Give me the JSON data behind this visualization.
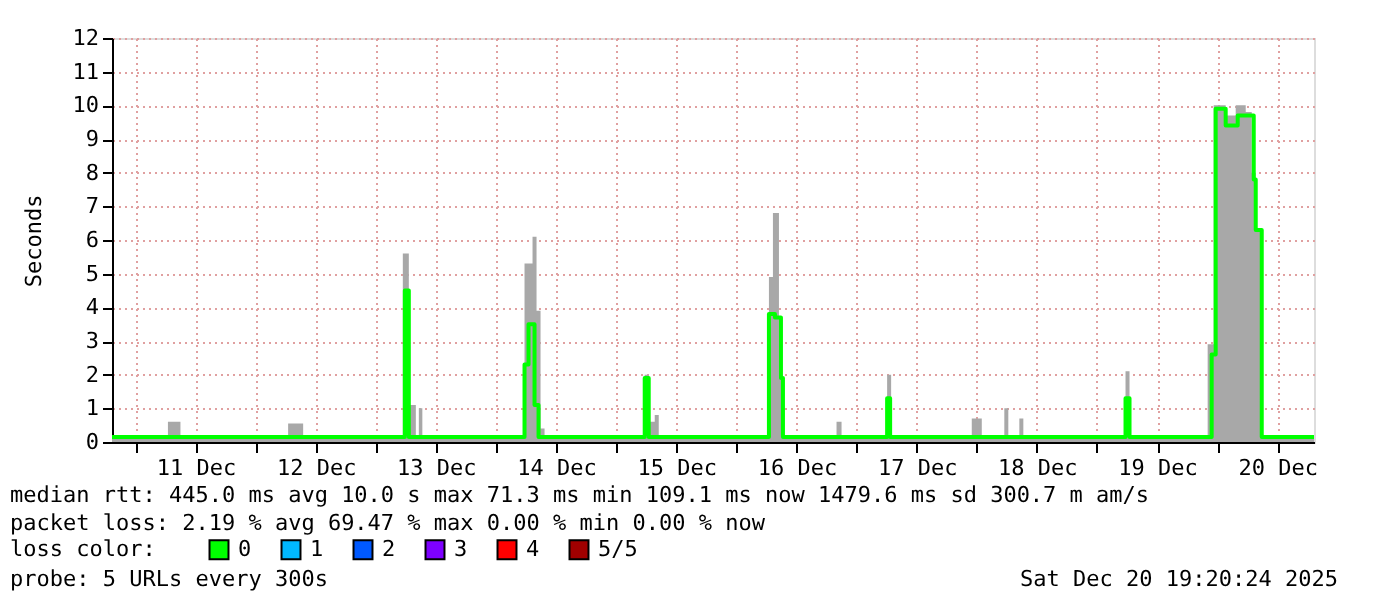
{
  "chart_data": {
    "type": "step",
    "ylabel": "Seconds",
    "xlim": [
      "2025-12-10T19:20",
      "2025-12-20T19:20"
    ],
    "xticks": [
      {
        "value": "2025-12-11T00:00",
        "label": null
      },
      {
        "value": "2025-12-11T12:00",
        "label": "11 Dec"
      },
      {
        "value": "2025-12-12T00:00",
        "label": null
      },
      {
        "value": "2025-12-12T12:00",
        "label": "12 Dec"
      },
      {
        "value": "2025-12-13T00:00",
        "label": null
      },
      {
        "value": "2025-12-13T12:00",
        "label": "13 Dec"
      },
      {
        "value": "2025-12-14T00:00",
        "label": null
      },
      {
        "value": "2025-12-14T12:00",
        "label": "14 Dec"
      },
      {
        "value": "2025-12-15T00:00",
        "label": null
      },
      {
        "value": "2025-12-15T12:00",
        "label": "15 Dec"
      },
      {
        "value": "2025-12-16T00:00",
        "label": null
      },
      {
        "value": "2025-12-16T12:00",
        "label": "16 Dec"
      },
      {
        "value": "2025-12-17T00:00",
        "label": null
      },
      {
        "value": "2025-12-17T12:00",
        "label": "17 Dec"
      },
      {
        "value": "2025-12-18T00:00",
        "label": null
      },
      {
        "value": "2025-12-18T12:00",
        "label": "18 Dec"
      },
      {
        "value": "2025-12-19T00:00",
        "label": null
      },
      {
        "value": "2025-12-19T12:00",
        "label": "19 Dec"
      },
      {
        "value": "2025-12-20T00:00",
        "label": null
      },
      {
        "value": "2025-12-20T12:00",
        "label": "20 Dec"
      }
    ],
    "ylim": [
      0,
      12
    ],
    "yticks": [
      0,
      1,
      2,
      3,
      4,
      5,
      6,
      7,
      8,
      9,
      10,
      11,
      12
    ],
    "grid": true,
    "legend": "bottom left",
    "legend_title": "loss color:",
    "series": [
      {
        "type": "area",
        "color": "#a8a8a8",
        "x": [
          "2025-12-10T19:20",
          "2025-12-11T06:30",
          "2025-12-11T09:00",
          "2025-12-12T06:30",
          "2025-12-12T09:30",
          "2025-12-13T05:24",
          "2025-12-13T06:36",
          "2025-12-13T08:00",
          "2025-12-13T08:36",
          "2025-12-13T09:18",
          "2025-12-14T05:42",
          "2025-12-14T07:18",
          "2025-12-14T08:06",
          "2025-12-14T08:54",
          "2025-12-14T09:42",
          "2025-12-15T05:42",
          "2025-12-15T06:30",
          "2025-12-15T07:42",
          "2025-12-15T08:30",
          "2025-12-16T06:30",
          "2025-12-16T07:18",
          "2025-12-16T08:30",
          "2025-12-16T09:18",
          "2025-12-16T20:00",
          "2025-12-16T21:00",
          "2025-12-17T06:06",
          "2025-12-17T06:54",
          "2025-12-17T23:00",
          "2025-12-18T01:00",
          "2025-12-18T05:30",
          "2025-12-18T06:18",
          "2025-12-18T08:30",
          "2025-12-18T09:18",
          "2025-12-19T05:42",
          "2025-12-19T06:30",
          "2025-12-19T22:06",
          "2025-12-19T23:18",
          "2025-12-20T01:42",
          "2025-12-20T03:42",
          "2025-12-20T05:42",
          "2025-12-20T06:54",
          "2025-12-20T07:42",
          "2025-12-20T08:54",
          "2025-12-20T19:20"
        ],
        "values": [
          0.2,
          0.6,
          0.2,
          0.55,
          0.2,
          5.6,
          1.1,
          0.2,
          1.0,
          0.2,
          5.3,
          6.1,
          3.9,
          0.4,
          0.2,
          2.0,
          0.6,
          0.8,
          0.2,
          4.9,
          6.8,
          1.9,
          0.2,
          0.6,
          0.2,
          2.0,
          0.2,
          0.7,
          0.2,
          1.0,
          0.2,
          0.7,
          0.2,
          2.1,
          0.2,
          2.9,
          10.0,
          9.7,
          10.0,
          9.8,
          8.0,
          6.3,
          0.2,
          0.2
        ]
      },
      {
        "color": "#00ff00",
        "x": [
          "2025-12-10T19:20",
          "2025-12-13T05:48",
          "2025-12-13T06:36",
          "2025-12-14T05:42",
          "2025-12-14T06:30",
          "2025-12-14T07:42",
          "2025-12-14T08:30",
          "2025-12-15T05:42",
          "2025-12-15T06:30",
          "2025-12-16T06:30",
          "2025-12-16T07:42",
          "2025-12-16T08:54",
          "2025-12-16T09:18",
          "2025-12-17T06:06",
          "2025-12-17T06:42",
          "2025-12-19T05:42",
          "2025-12-19T06:30",
          "2025-12-19T22:54",
          "2025-12-19T23:42",
          "2025-12-20T01:42",
          "2025-12-20T04:06",
          "2025-12-20T06:06",
          "2025-12-20T07:18",
          "2025-12-20T07:42",
          "2025-12-20T08:54",
          "2025-12-20T19:20"
        ],
        "values": [
          0.15,
          4.5,
          0.15,
          2.3,
          3.5,
          1.1,
          0.15,
          1.9,
          0.15,
          3.8,
          3.7,
          1.9,
          0.15,
          1.3,
          0.15,
          1.3,
          0.15,
          2.6,
          9.9,
          9.4,
          9.7,
          9.7,
          7.8,
          6.3,
          0.15,
          0.15
        ]
      },
      {
        "name": "0",
        "color": "#00ff00"
      },
      {
        "name": "1",
        "color": "#00b8ff"
      },
      {
        "name": "2",
        "color": "#0059ff"
      },
      {
        "name": "3",
        "color": "#7e00ff"
      },
      {
        "name": "4",
        "color": "#ff0000"
      },
      {
        "name": "5/5",
        "color": "#a10000"
      }
    ],
    "annotations": [
      "median rtt:  445.0 ms avg  10.0  s max  71.3 ms min  109.1 ms now  1479.6 ms sd  300.7 m am/s",
      "packet loss: 2.19 % avg  69.47 % max  0.00 % min  0.00 % now",
      "probe:        5 URLs every 300s",
      "Sat Dec 20 19:20:24 2025"
    ]
  }
}
